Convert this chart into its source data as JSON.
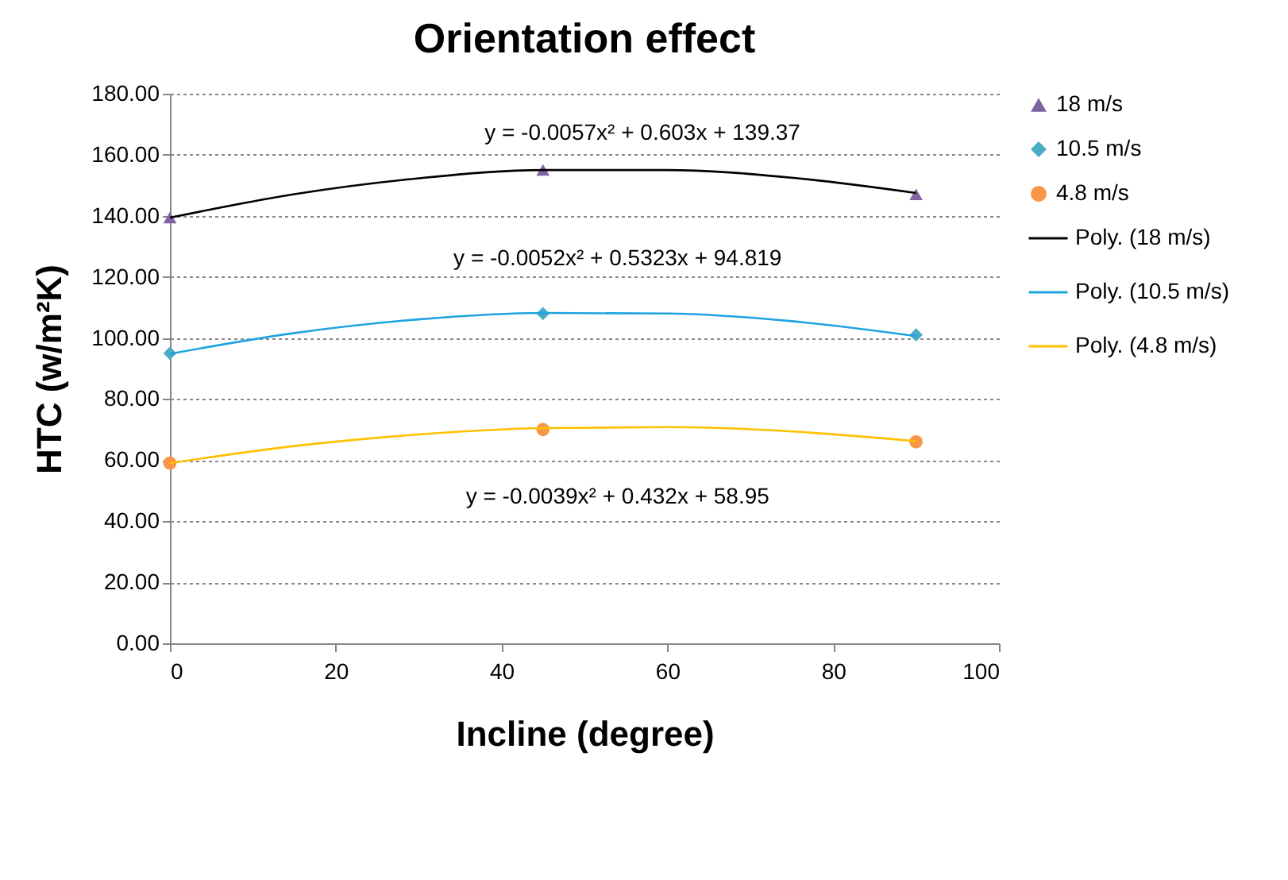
{
  "chart_data": {
    "type": "scatter",
    "title": "Orientation effect",
    "xlabel": "Incline (degree)",
    "ylabel": "HTC (w/m²K)",
    "xlim": [
      0,
      100
    ],
    "xticks": [
      0,
      20,
      40,
      60,
      80,
      100
    ],
    "ylim": [
      0,
      180
    ],
    "yticks": [
      {
        "value": 0,
        "label": "0.00"
      },
      {
        "value": 20,
        "label": "20.00"
      },
      {
        "value": 40,
        "label": "40.00"
      },
      {
        "value": 60,
        "label": "60.00"
      },
      {
        "value": 80,
        "label": "80.00"
      },
      {
        "value": 100,
        "label": "100.00"
      },
      {
        "value": 120,
        "label": "120.00"
      },
      {
        "value": 140,
        "label": "140.00"
      },
      {
        "value": 160,
        "label": "160.00"
      },
      {
        "value": 180,
        "label": "180.00"
      }
    ],
    "grid": "y",
    "legend": "right",
    "x": [
      0,
      45,
      90
    ],
    "series": [
      {
        "name": "18 m/s",
        "type": "scatter",
        "marker": "triangle",
        "color": "#8064a2",
        "values": [
          139.4,
          155,
          147
        ]
      },
      {
        "name": "10.5 m/s",
        "type": "scatter",
        "marker": "diamond",
        "color": "#4bacc6",
        "values": [
          95,
          108,
          101
        ]
      },
      {
        "name": "4.8 m/s",
        "type": "scatter",
        "marker": "circle",
        "color": "#f79646",
        "values": [
          59,
          70,
          66
        ]
      },
      {
        "name": "Poly. (18 m/s)",
        "type": "line",
        "color": "#000000",
        "x": [
          0,
          15,
          30,
          45,
          60,
          75,
          90
        ],
        "values": [
          139.4,
          147.1,
          152.3,
          155.0,
          155.0,
          152.5,
          147.5
        ]
      },
      {
        "name": "Poly. (10.5 m/s)",
        "type": "line",
        "color": "#1fa3e0",
        "x": [
          0,
          15,
          30,
          45,
          60,
          75,
          90
        ],
        "values": [
          94.8,
          101.6,
          106.1,
          108.2,
          108.0,
          105.5,
          100.6
        ]
      },
      {
        "name": "Poly. (4.8 m/s)",
        "type": "line",
        "color": "#ffc000",
        "x": [
          0,
          15,
          30,
          45,
          60,
          75,
          90
        ],
        "values": [
          59.0,
          64.6,
          68.4,
          70.5,
          70.8,
          69.4,
          66.2
        ]
      }
    ],
    "annotations": [
      "y = -0.0057x² + 0.603x + 139.37",
      "y = -0.0052x² + 0.5323x + 94.819",
      "y = -0.0039x² + 0.432x + 58.95"
    ]
  }
}
